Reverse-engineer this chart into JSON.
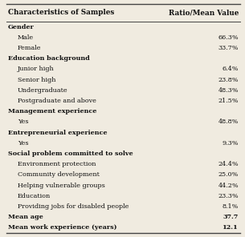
{
  "header_col1": "Characteristics of Samples",
  "header_col2": "Ratio/Mean Value",
  "rows": [
    {
      "label": "Gender",
      "value": "",
      "bold": true,
      "indent": false
    },
    {
      "label": "Male",
      "value": "66.3%",
      "bold": false,
      "indent": true
    },
    {
      "label": "Female",
      "value": "33.7%",
      "bold": false,
      "indent": true
    },
    {
      "label": "Education background",
      "value": "",
      "bold": true,
      "indent": false
    },
    {
      "label": "Junior high",
      "value": "6.4%",
      "bold": false,
      "indent": true
    },
    {
      "label": "Senior high",
      "value": "23.8%",
      "bold": false,
      "indent": true
    },
    {
      "label": "Undergraduate",
      "value": "48.3%",
      "bold": false,
      "indent": true
    },
    {
      "label": "Postgraduate and above",
      "value": "21.5%",
      "bold": false,
      "indent": true
    },
    {
      "label": "Management experience",
      "value": "",
      "bold": true,
      "indent": false
    },
    {
      "label": "Yes",
      "value": "48.8%",
      "bold": false,
      "indent": true
    },
    {
      "label": "Entrepreneurial experience",
      "value": "",
      "bold": true,
      "indent": false
    },
    {
      "label": "Yes",
      "value": "9.3%",
      "bold": false,
      "indent": true
    },
    {
      "label": "Social problem committed to solve",
      "value": "",
      "bold": true,
      "indent": false
    },
    {
      "label": "Environment protection",
      "value": "24.4%",
      "bold": false,
      "indent": true
    },
    {
      "label": "Community development",
      "value": "25.0%",
      "bold": false,
      "indent": true
    },
    {
      "label": "Helping vulnerable groups",
      "value": "44.2%",
      "bold": false,
      "indent": true
    },
    {
      "label": "Education",
      "value": "23.3%",
      "bold": false,
      "indent": true
    },
    {
      "label": "Providing jobs for disabled people",
      "value": "8.1%",
      "bold": false,
      "indent": true
    },
    {
      "label": "Mean age",
      "value": "37.7",
      "bold": true,
      "indent": false
    },
    {
      "label": "Mean work experience (years)",
      "value": "12.1",
      "bold": true,
      "indent": false
    }
  ],
  "bg_color": "#f0ebe0",
  "text_color": "#111111",
  "line_color": "#444444",
  "font_size": 5.8,
  "header_font_size": 6.3,
  "fig_width": 3.05,
  "fig_height": 2.96,
  "dpi": 100
}
